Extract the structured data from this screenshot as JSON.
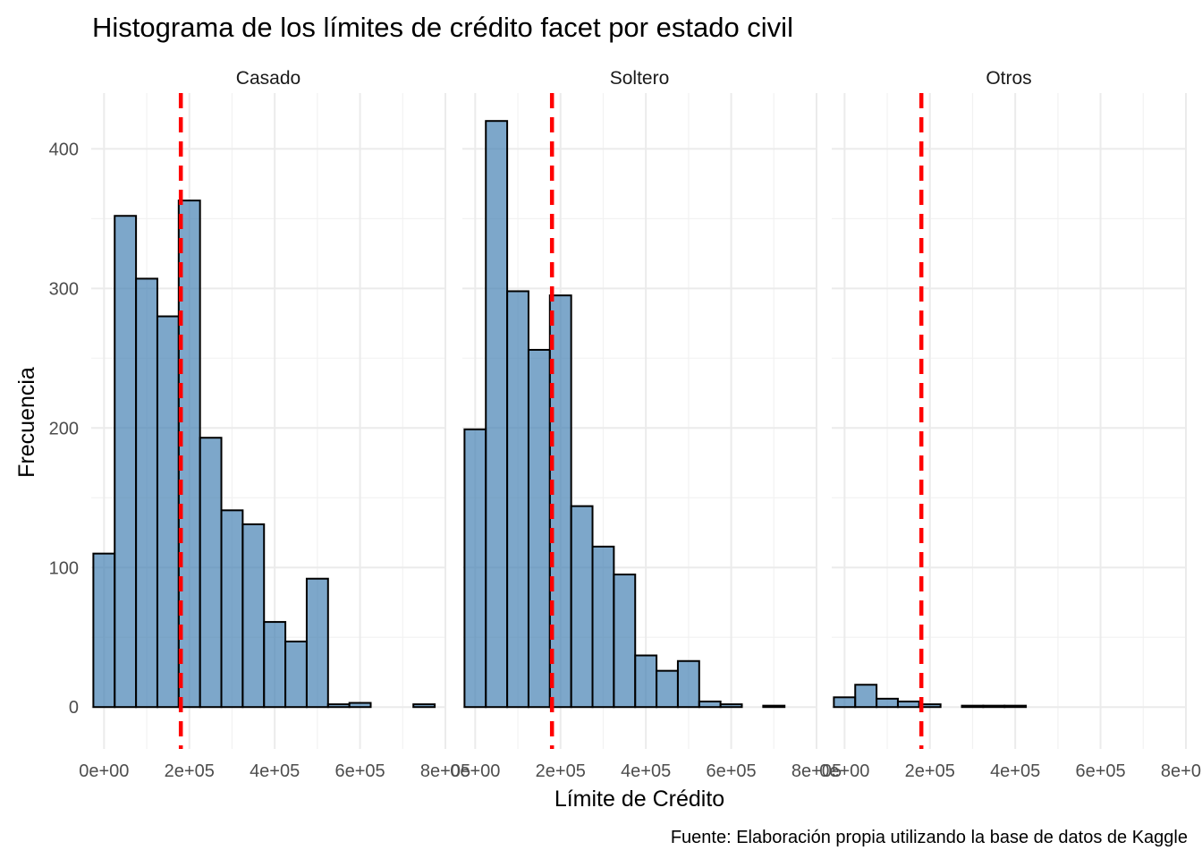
{
  "chart_data": {
    "type": "bar",
    "title": "Histograma de los límites de crédito facet por estado civil",
    "xlabel": "Límite de Crédito",
    "ylabel": "Frecuencia",
    "caption": "Fuente: Elaboración propia utilizando la base de datos de Kaggle",
    "bin_width": 50000,
    "bin_centers": [
      0,
      50000,
      100000,
      150000,
      200000,
      250000,
      300000,
      350000,
      400000,
      450000,
      500000,
      550000,
      600000,
      650000,
      700000,
      750000
    ],
    "xlim": [
      -30000,
      800000
    ],
    "ylim": [
      -30,
      440
    ],
    "x_ticks": [
      0,
      200000,
      400000,
      600000,
      800000
    ],
    "x_tick_labels": [
      "0e+00",
      "2e+05",
      "4e+05",
      "6e+05",
      "8e+05"
    ],
    "y_ticks": [
      0,
      100,
      200,
      300,
      400
    ],
    "y_tick_labels": [
      "0",
      "100",
      "200",
      "300",
      "400"
    ],
    "grid": true,
    "bar_color": "#4682B4",
    "bar_alpha": 0.7,
    "mean_line_color": "#FF0000",
    "facets": [
      {
        "label": "Casado",
        "counts": [
          110,
          352,
          307,
          280,
          363,
          193,
          141,
          131,
          61,
          47,
          92,
          2,
          3,
          0,
          0,
          2
        ],
        "mean": 180000
      },
      {
        "label": "Soltero",
        "counts": [
          199,
          420,
          298,
          256,
          295,
          144,
          115,
          95,
          37,
          26,
          33,
          4,
          2,
          0,
          1,
          0
        ],
        "mean": 180000
      },
      {
        "label": "Otros",
        "counts": [
          7,
          16,
          6,
          4,
          2,
          0,
          1,
          1,
          1,
          0,
          0,
          0,
          0,
          0,
          0,
          0
        ],
        "mean": 180000
      }
    ]
  }
}
